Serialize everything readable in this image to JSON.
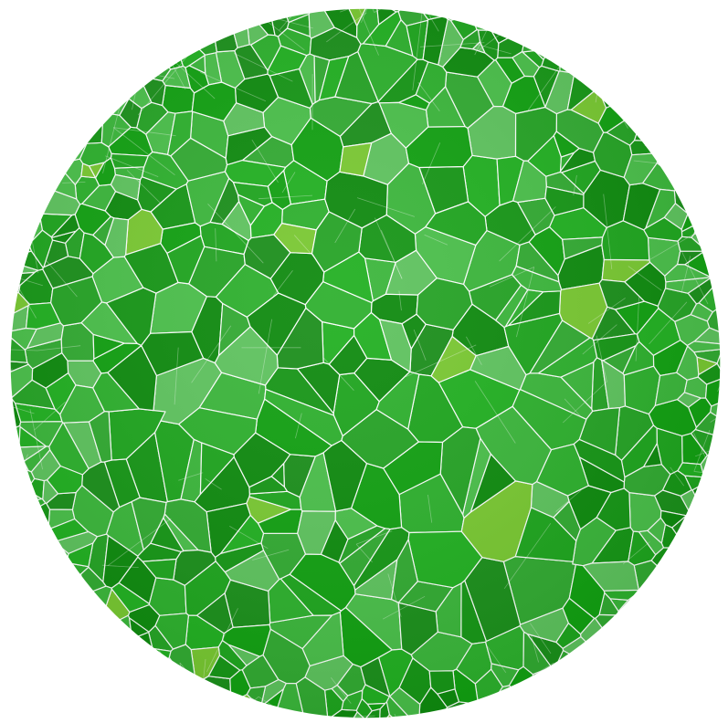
{
  "figure": {
    "subject": "faceted-polyhedron-sphere",
    "edge_color": "#ffffff",
    "background_color": "#ffffff",
    "palette": [
      "#1fa51f",
      "#2eb02e",
      "#179617",
      "#3cb63c",
      "#26a326",
      "#12a012",
      "#4bbf4b",
      "#1c8f1c",
      "#33aa33",
      "#22b022",
      "#0f8a0f",
      "#5fc35f"
    ],
    "accent_color": "#7ac832"
  }
}
